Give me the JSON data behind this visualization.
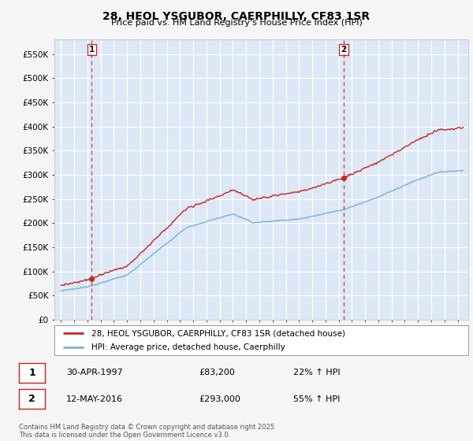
{
  "title_line1": "28, HEOL YSGUBOR, CAERPHILLY, CF83 1SR",
  "title_line2": "Price paid vs. HM Land Registry's House Price Index (HPI)",
  "legend_label1": "28, HEOL YSGUBOR, CAERPHILLY, CF83 1SR (detached house)",
  "legend_label2": "HPI: Average price, detached house, Caerphilly",
  "sale1_label": "1",
  "sale1_date": "30-APR-1997",
  "sale1_price": 83200,
  "sale1_hpi": "22% ↑ HPI",
  "sale2_label": "2",
  "sale2_date": "12-MAY-2016",
  "sale2_price": 293000,
  "sale2_hpi": "55% ↑ HPI",
  "sale1_year": 1997.33,
  "sale2_year": 2016.37,
  "ylim_min": 0,
  "ylim_max": 580000,
  "yticks": [
    0,
    50000,
    100000,
    150000,
    200000,
    250000,
    300000,
    350000,
    400000,
    450000,
    500000,
    550000
  ],
  "ytick_labels": [
    "£0",
    "£50K",
    "£100K",
    "£150K",
    "£200K",
    "£250K",
    "£300K",
    "£350K",
    "£400K",
    "£450K",
    "£500K",
    "£550K"
  ],
  "background_color": "#dce8f5",
  "grid_color": "#ffffff",
  "hpi_line_color": "#7ab0d4",
  "price_line_color": "#cc2222",
  "vline_color": "#cc2222",
  "footer_text": "Contains HM Land Registry data © Crown copyright and database right 2025.\nThis data is licensed under the Open Government Licence v3.0.",
  "xmin": 1994.5,
  "xmax": 2025.8
}
